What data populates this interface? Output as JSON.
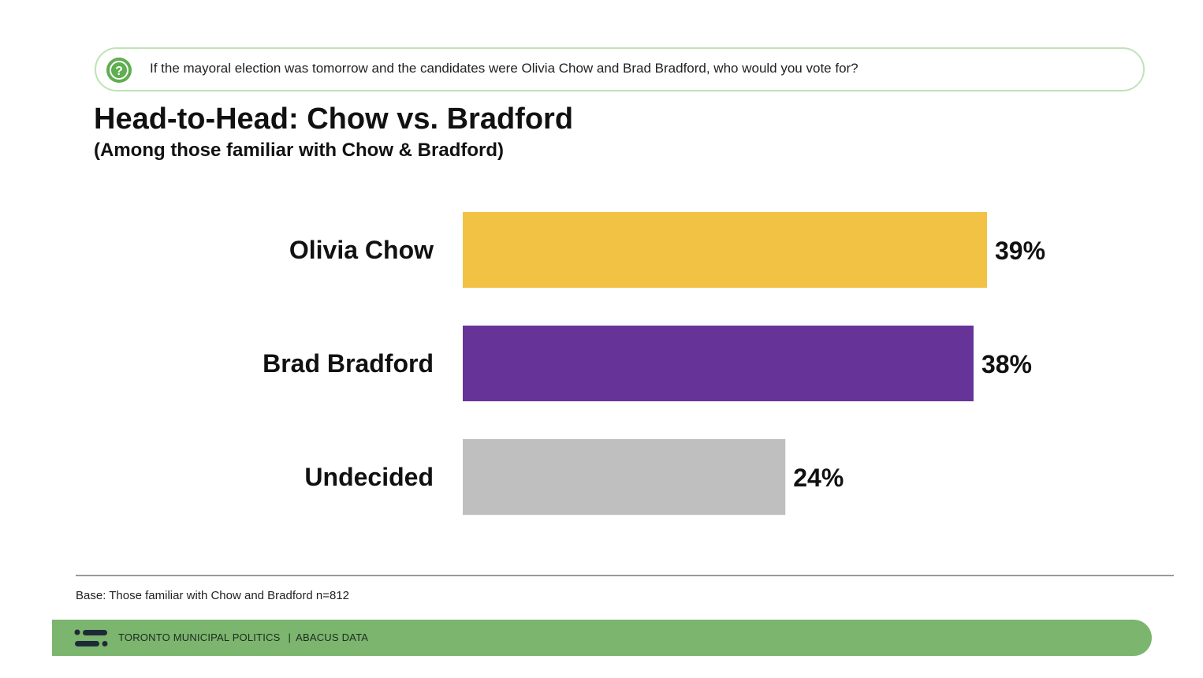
{
  "question": {
    "icon": "question-circle-icon",
    "text": "If the mayoral election was tomorrow and the candidates were Olivia Chow and Brad Bradford, who would you vote for?"
  },
  "colors": {
    "accent_green": "#7bb56e",
    "question_border": "#bfe3b5",
    "icon_green": "#5fae4f"
  },
  "chart_data": {
    "type": "bar",
    "orientation": "horizontal",
    "title": "Head-to-Head: Chow vs. Bradford",
    "subtitle": "(Among those familiar with Chow & Bradford)",
    "categories": [
      "Olivia Chow",
      "Brad Bradford",
      "Undecided"
    ],
    "values": [
      39,
      38,
      24
    ],
    "value_labels": [
      "39%",
      "38%",
      "24%"
    ],
    "colors": [
      "#f2c244",
      "#663399",
      "#bfbfbf"
    ],
    "unit": "%",
    "xlim": [
      0,
      39
    ],
    "grid": false,
    "legend": "none"
  },
  "base_note": "Base: Those familiar with Chow and Bradford n=812",
  "footer": {
    "logo": "abacus-logo-icon",
    "left_text": "TORONTO MUNICIPAL POLITICS",
    "separator": "|",
    "right_text": "ABACUS DATA"
  }
}
